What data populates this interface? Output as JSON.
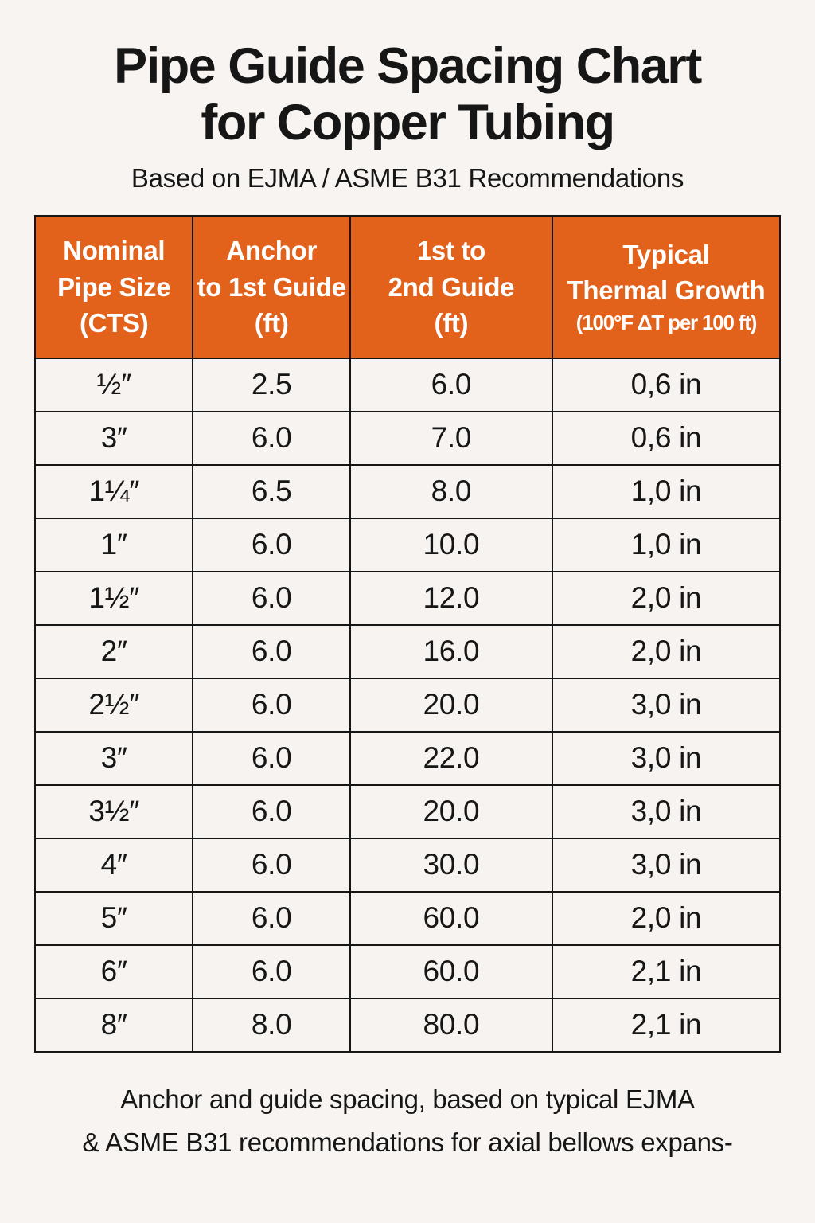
{
  "page": {
    "title_line1": "Pipe Guide Spacing Chart",
    "title_line2": "for Copper Tubing",
    "subtitle": "Based on EJMA / ASME B31 Recommendations",
    "footer_line1": "Anchor and guide spacing, based on typical EJMA",
    "footer_line2": "& ASME B31 recommendations for axial bellows expans-"
  },
  "colors": {
    "header_bg": "#E2621C",
    "header_text": "#FFFFFF",
    "page_bg": "#F7F4F1",
    "grid_border": "#161616",
    "body_text": "#161616"
  },
  "table": {
    "headers": [
      {
        "lines": [
          "Nominal",
          "Pipe Size",
          "(CTS)"
        ]
      },
      {
        "lines": [
          "Anchor",
          "to 1st Guide",
          "(ft)"
        ]
      },
      {
        "lines": [
          "1st to",
          "2nd Guide",
          "(ft)"
        ]
      },
      {
        "lines": [
          "Typical",
          "Thermal Growth",
          "(100°F ΔT per 100 ft)"
        ]
      }
    ]
  },
  "chart_data": {
    "type": "table",
    "title": "Pipe Guide Spacing Chart for Copper Tubing",
    "subtitle": "Based on EJMA / ASME B31 Recommendations",
    "columns": [
      "Nominal Pipe Size (CTS)",
      "Anchor to 1st Guide (ft)",
      "1st to 2nd Guide (ft)",
      "Typical Thermal Growth (100°F ΔT per 100 ft)"
    ],
    "rows": [
      [
        "½″",
        "2.5",
        "6.0",
        "0,6 in"
      ],
      [
        "3″",
        "6.0",
        "7.0",
        "0,6 in"
      ],
      [
        "1¼″",
        "6.5",
        "8.0",
        "1,0 in"
      ],
      [
        "1″",
        "6.0",
        "10.0",
        "1,0 in"
      ],
      [
        "1½″",
        "6.0",
        "12.0",
        "2,0 in"
      ],
      [
        "2″",
        "6.0",
        "16.0",
        "2,0 in"
      ],
      [
        "2½″",
        "6.0",
        "20.0",
        "3,0 in"
      ],
      [
        "3″",
        "6.0",
        "22.0",
        "3,0 in"
      ],
      [
        "3½″",
        "6.0",
        "20.0",
        "3,0 in"
      ],
      [
        "4″",
        "6.0",
        "30.0",
        "3,0 in"
      ],
      [
        "5″",
        "6.0",
        "60.0",
        "2,0 in"
      ],
      [
        "6″",
        "6.0",
        "60.0",
        "2,1 in"
      ],
      [
        "8″",
        "8.0",
        "80.0",
        "2,1 in"
      ]
    ],
    "footnote": "Anchor and guide spacing, based on typical EJMA & ASME B31 recommendations for axial bellows expans-"
  }
}
